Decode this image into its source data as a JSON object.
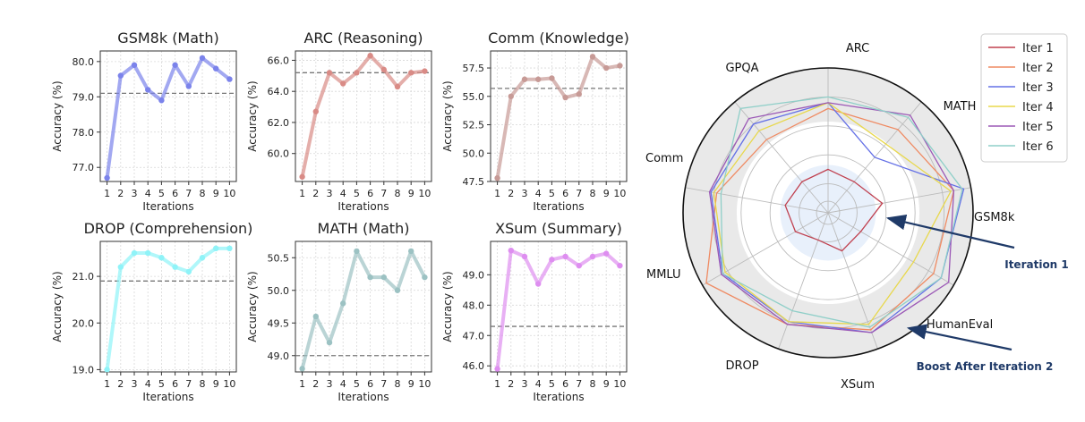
{
  "chart_data": [
    {
      "type": "line",
      "title": "GSM8k (Math)",
      "xlabel": "Iterations",
      "ylabel": "Accuracy (%)",
      "x": [
        1,
        2,
        3,
        4,
        5,
        6,
        7,
        8,
        9,
        10
      ],
      "values": [
        76.7,
        79.6,
        79.9,
        79.2,
        78.9,
        79.9,
        79.3,
        80.1,
        79.8,
        79.5
      ],
      "baseline": 79.1,
      "ylim": [
        76.6,
        80.3
      ],
      "yticks": [
        "77.0",
        "78.0",
        "79.0",
        "80.0"
      ],
      "color": "#7b83eb",
      "grid": true
    },
    {
      "type": "line",
      "title": "ARC (Reasoning)",
      "xlabel": "Iterations",
      "ylabel": "Accuracy (%)",
      "x": [
        1,
        2,
        3,
        4,
        5,
        6,
        7,
        8,
        9,
        10
      ],
      "values": [
        58.5,
        62.7,
        65.2,
        64.5,
        65.2,
        66.3,
        65.4,
        64.3,
        65.2,
        65.3
      ],
      "baseline": 65.2,
      "ylim": [
        58.2,
        66.6
      ],
      "yticks": [
        "60.0",
        "62.0",
        "64.0",
        "66.0"
      ],
      "color": "#d98b86",
      "grid": true
    },
    {
      "type": "line",
      "title": "Comm (Knowledge)",
      "xlabel": "Iterations",
      "ylabel": "Accuracy (%)",
      "x": [
        1,
        2,
        3,
        4,
        5,
        6,
        7,
        8,
        9,
        10
      ],
      "values": [
        47.8,
        55.0,
        56.5,
        56.5,
        56.6,
        54.9,
        55.2,
        58.5,
        57.5,
        57.7
      ],
      "baseline": 55.7,
      "ylim": [
        47.5,
        59.0
      ],
      "yticks": [
        "47.5",
        "50.0",
        "52.5",
        "55.0",
        "57.5"
      ],
      "color": "#c79a96",
      "grid": true
    },
    {
      "type": "line",
      "title": "DROP (Comprehension)",
      "xlabel": "Iterations",
      "ylabel": "Accuracy (%)",
      "x": [
        1,
        2,
        3,
        4,
        5,
        6,
        7,
        8,
        9,
        10
      ],
      "values": [
        19.0,
        21.2,
        21.5,
        21.5,
        21.4,
        21.2,
        21.1,
        21.4,
        21.6,
        21.6
      ],
      "baseline": 20.9,
      "ylim": [
        18.95,
        21.75
      ],
      "yticks": [
        "19.0",
        "20.0",
        "21.0"
      ],
      "color": "#8ff3f8",
      "grid": true
    },
    {
      "type": "line",
      "title": "MATH (Math)",
      "xlabel": "Iterations",
      "ylabel": "Accuracy (%)",
      "x": [
        1,
        2,
        3,
        4,
        5,
        6,
        7,
        8,
        9,
        10
      ],
      "values": [
        48.8,
        49.6,
        49.2,
        49.8,
        50.6,
        50.2,
        50.2,
        50.0,
        50.6,
        50.2
      ],
      "baseline": 49.0,
      "ylim": [
        48.75,
        50.75
      ],
      "yticks": [
        "49.0",
        "49.5",
        "50.0",
        "50.5"
      ],
      "color": "#9cc2c3",
      "grid": true
    },
    {
      "type": "line",
      "title": "XSum (Summary)",
      "xlabel": "Iterations",
      "ylabel": "Accuracy (%)",
      "x": [
        1,
        2,
        3,
        4,
        5,
        6,
        7,
        8,
        9,
        10
      ],
      "values": [
        45.9,
        49.8,
        49.6,
        48.7,
        49.5,
        49.6,
        49.3,
        49.6,
        49.7,
        49.3
      ],
      "baseline": 47.3,
      "ylim": [
        45.8,
        50.1
      ],
      "yticks": [
        "46.0",
        "47.0",
        "48.0",
        "49.0"
      ],
      "color": "#de8ef0",
      "grid": true
    },
    {
      "type": "radar",
      "axes": [
        "ARC",
        "MATH",
        "GSM8k",
        "HumanEval",
        "XSum",
        "DROP",
        "MMLU",
        "Comm",
        "GPQA"
      ],
      "range": [
        0,
        1
      ],
      "series": [
        {
          "name": "Iter 1",
          "color": "#c0404f",
          "values": [
            0.3,
            0.28,
            0.38,
            0.26,
            0.28,
            0.2,
            0.26,
            0.3,
            0.28
          ]
        },
        {
          "name": "Iter 2",
          "color": "#ef8a62",
          "values": [
            0.72,
            0.75,
            0.88,
            0.84,
            0.86,
            0.82,
            0.97,
            0.78,
            0.66
          ]
        },
        {
          "name": "Iter 3",
          "color": "#6470e6",
          "values": [
            0.76,
            0.5,
            0.95,
            0.9,
            0.88,
            0.8,
            0.84,
            0.82,
            0.8
          ]
        },
        {
          "name": "Iter 4",
          "color": "#e8d84c",
          "values": [
            0.76,
            0.62,
            0.86,
            0.68,
            0.82,
            0.8,
            0.82,
            0.8,
            0.74
          ]
        },
        {
          "name": "Iter 5",
          "color": "#9b58b6",
          "values": [
            0.76,
            0.88,
            0.88,
            0.96,
            0.88,
            0.82,
            0.85,
            0.83,
            0.85
          ]
        },
        {
          "name": "Iter 6",
          "color": "#8fcfc8",
          "values": [
            0.8,
            0.86,
            0.94,
            0.9,
            0.84,
            0.72,
            0.84,
            0.75,
            0.94
          ]
        }
      ],
      "legend": "top-right"
    }
  ],
  "annotations": [
    {
      "text": "Iteration 1",
      "target": "Iter 1"
    },
    {
      "text": "Boost After Iteration 2",
      "target": "Iter 2"
    }
  ]
}
